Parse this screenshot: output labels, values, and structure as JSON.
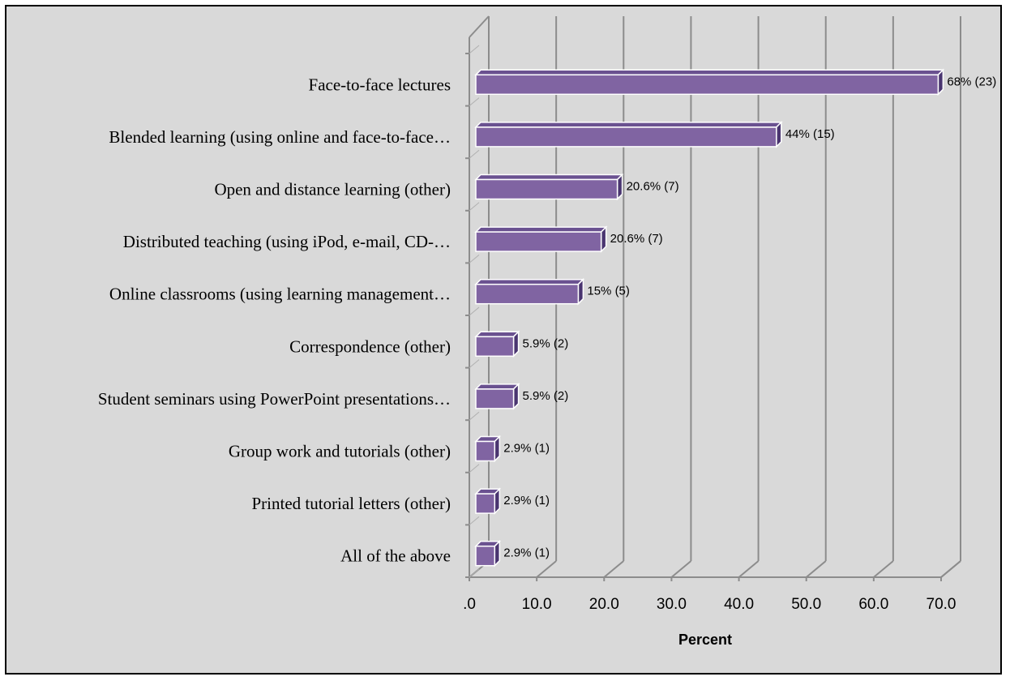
{
  "chart_data": {
    "type": "bar",
    "orientation": "horizontal",
    "style": "3d",
    "categories": [
      "Face-to-face lectures",
      "Blended learning (using online and face-to-face…",
      "Open and distance learning (other)",
      "Distributed teaching (using iPod, e-mail, CD-…",
      "Online classrooms (using learning management…",
      "Correspondence (other)",
      "Student seminars using PowerPoint presentations…",
      "Group work and tutorials (other)",
      "Printed tutorial letters (other)",
      "All of the above"
    ],
    "values": [
      68,
      44,
      20.6,
      20.6,
      15,
      5.9,
      5.9,
      2.9,
      2.9,
      2.9
    ],
    "bar_lengths_rendered": [
      68.6,
      44.6,
      21.0,
      18.6,
      15.2,
      5.6,
      5.6,
      2.8,
      2.8,
      2.8
    ],
    "data_labels": [
      "68% (23)",
      "44% (15)",
      "20.6% (7)",
      "20.6% (7)",
      "15% (5)",
      "5.9% (2)",
      "5.9% (2)",
      "2.9% (1)",
      "2.9% (1)",
      "2.9% (1)"
    ],
    "x_ticks": [
      ".0",
      "10.0",
      "20.0",
      "30.0",
      "40.0",
      "50.0",
      "60.0",
      "70.0"
    ],
    "xlim": [
      0,
      70
    ],
    "xlabel": "Percent",
    "ylabel": "",
    "title": "",
    "grid": true,
    "legend": "none",
    "colors": {
      "bar_front": "#8064a2",
      "bar_top": "#6a5190",
      "bar_side": "#4a3570",
      "bar_edge": "#ffffff",
      "background": "#d9d9d9",
      "gridline": "#8c8c8c"
    }
  }
}
